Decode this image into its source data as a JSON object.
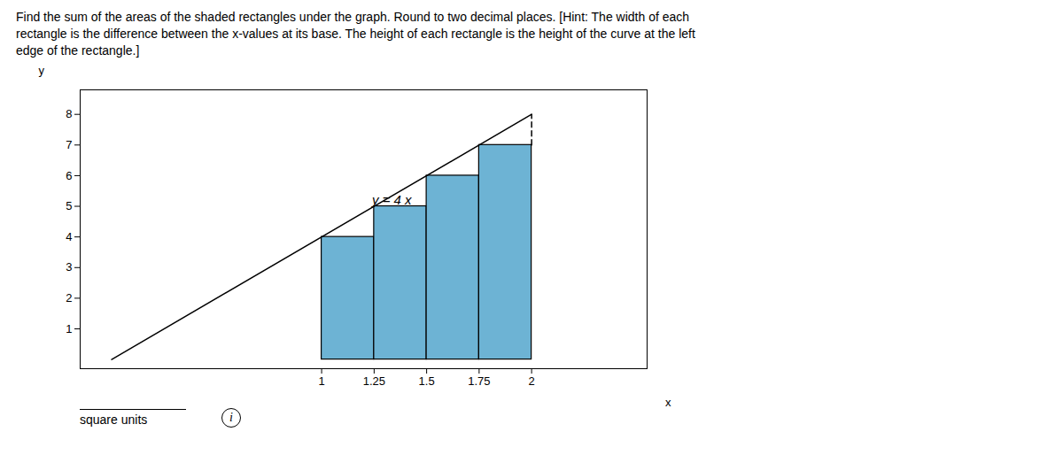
{
  "chart_data": {
    "type": "bar",
    "title": "Find the sum of the areas of the shaded rectangles under the graph. Round to two decimal places. [Hint: The width of each\nrectangle is the difference between the x-values at its base. The height of each rectangle is the height of the curve at the left\nedge of the rectangle.]",
    "xlabel": "x",
    "ylabel": "y",
    "xlim": [
      -0.15,
      2.55
    ],
    "ylim": [
      -0.3,
      8.8
    ],
    "xticks": [
      1,
      1.25,
      1.5,
      1.75,
      2
    ],
    "yticks": [
      1,
      2,
      3,
      4,
      5,
      6,
      7,
      8
    ],
    "grid": false,
    "series": [
      {
        "type": "bar",
        "x": [
          1.0,
          1.25,
          1.5,
          1.75
        ],
        "width": 0.25,
        "values": [
          4.0,
          5.0,
          6.0,
          7.0
        ],
        "color": "#6db3d4",
        "edge_color": "#000000"
      },
      {
        "type": "line",
        "x": [
          0,
          2.0
        ],
        "values": [
          0,
          8.0
        ],
        "color": "#000000",
        "line_style": "solid"
      },
      {
        "type": "line",
        "x": [
          2.0,
          2.0
        ],
        "values": [
          7.0,
          8.0
        ],
        "color": "#000000",
        "line_style": "dashed"
      }
    ],
    "annotations": [
      {
        "text": "y = 4 x",
        "x": 1.24,
        "y": 5.05
      },
      {
        "text": "square units"
      },
      {
        "text": "i"
      }
    ]
  }
}
